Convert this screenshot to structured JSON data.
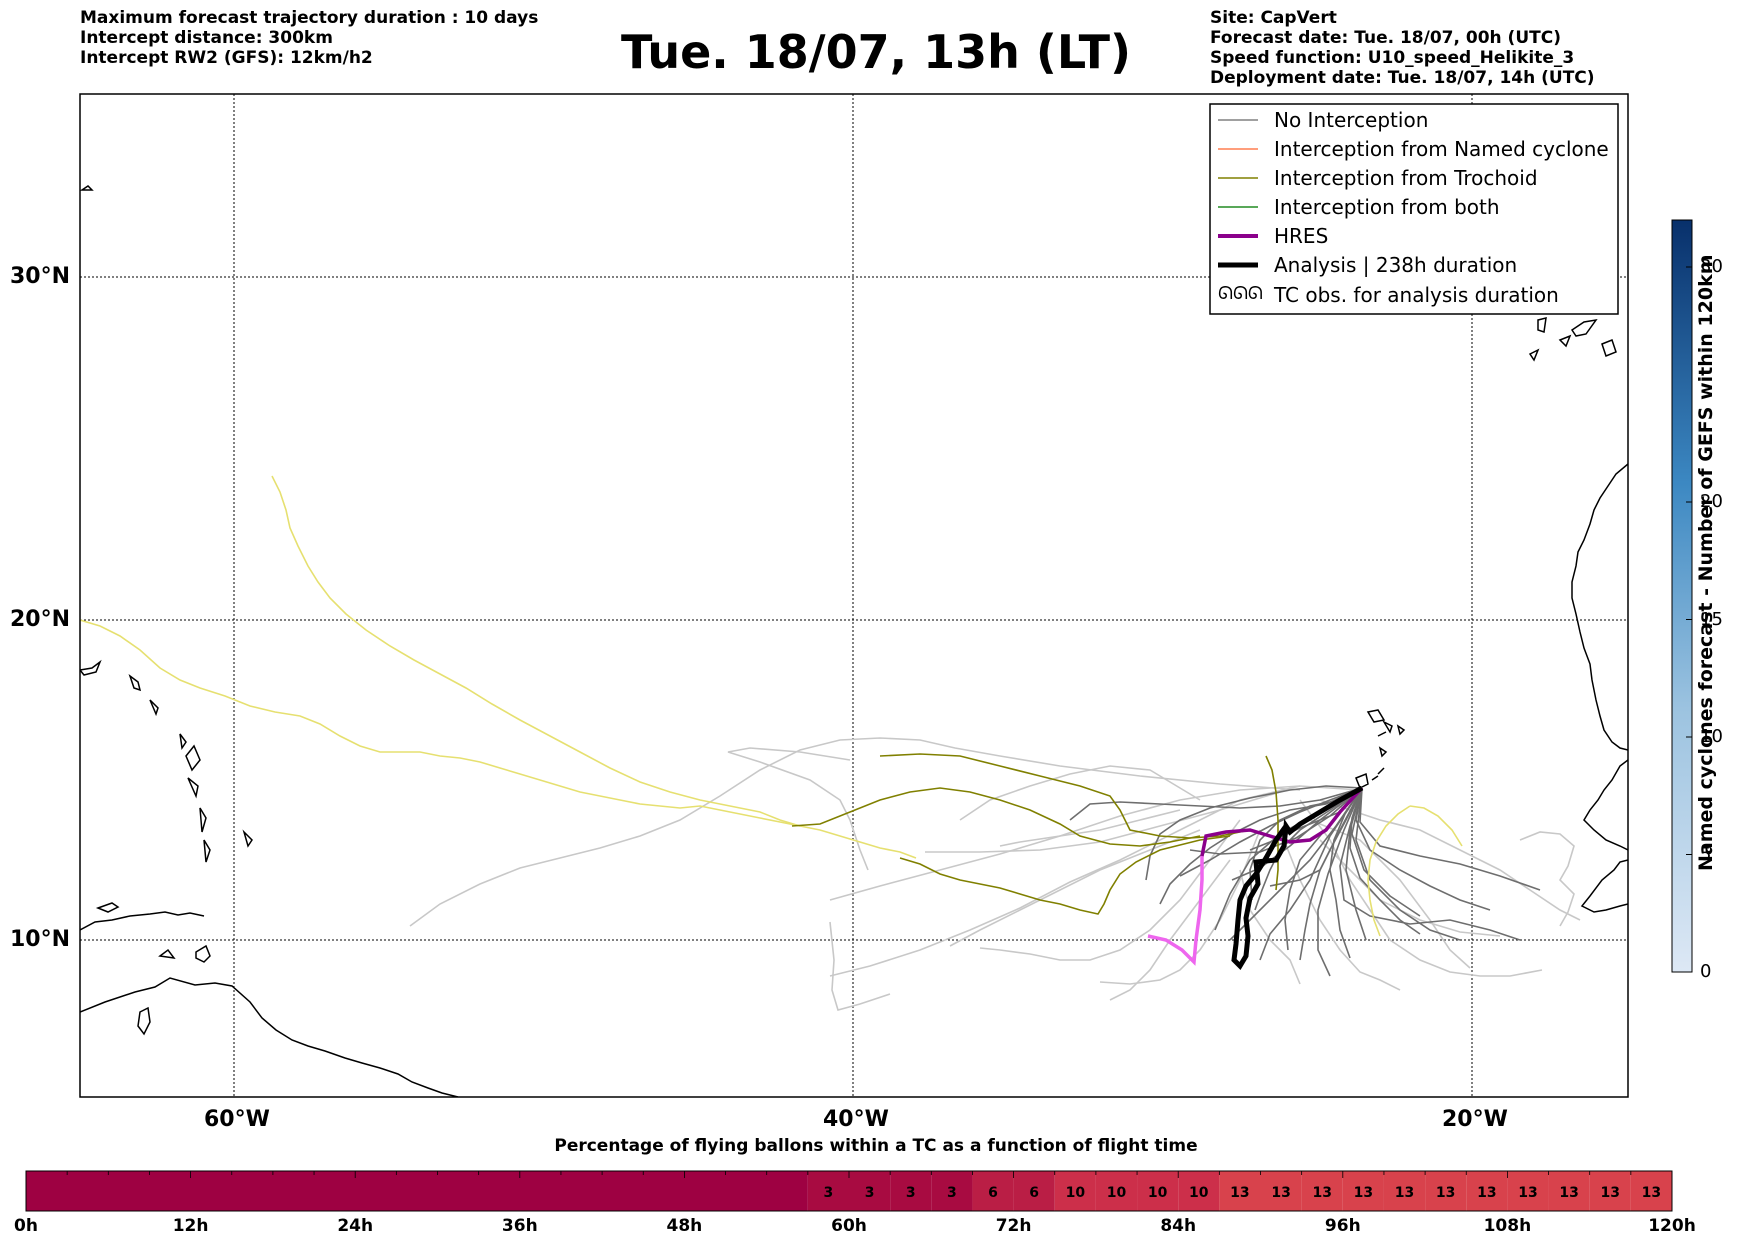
{
  "header": {
    "left_lines": [
      "Maximum forecast trajectory duration : 10 days",
      "Intercept distance: 300km",
      "Intercept RW2 (GFS):  12km/h2"
    ],
    "title": "Tue. 18/07, 13h (LT)",
    "right_lines": [
      "Site: CapVert",
      "Forecast date: Tue. 18/07, 00h (UTC)",
      "Speed function: U10_speed_Helikite_3",
      "Deployment date: Tue. 18/07, 14h (UTC)"
    ]
  },
  "map": {
    "lon_labels": [
      "60°W",
      "40°W",
      "20°W"
    ],
    "lat_labels": [
      "30°N",
      "20°N",
      "10°N"
    ],
    "gridline_lons": [
      -60,
      -40,
      -20
    ],
    "gridline_lats": [
      30,
      20,
      10
    ],
    "lon_range": [
      -65,
      -15
    ],
    "lat_range": [
      5.4,
      34.6
    ]
  },
  "legend": {
    "position": "top-right",
    "items": [
      {
        "label": "No Interception",
        "color": "#808080",
        "style": "thin"
      },
      {
        "label": "Interception from Named cyclone",
        "color": "#ff7f50",
        "style": "thin"
      },
      {
        "label": "Interception from Trochoid",
        "color": "#808000",
        "style": "thin"
      },
      {
        "label": "Interception from both",
        "color": "#228b22",
        "style": "thin"
      },
      {
        "label": "HRES",
        "color": "#8b008b",
        "style": "thick"
      },
      {
        "label": "Analysis | 238h duration",
        "color": "#000000",
        "style": "thick"
      },
      {
        "label": "TC obs. for analysis duration",
        "icon": "tc-symbol-icon",
        "symbol": "ᘏᘏᘏ"
      }
    ]
  },
  "colorbar": {
    "title": "Named cyclones forecast - Number of GEFS within 120km",
    "ticks": [
      "0",
      "5",
      "10",
      "15",
      "20",
      "30"
    ],
    "tick_values": [
      0,
      5,
      10,
      15,
      20,
      30
    ],
    "range": [
      0,
      32
    ]
  },
  "strip": {
    "title": "Percentage of flying ballons within a TC as a function of flight time",
    "time_labels": [
      "0h",
      "12h",
      "24h",
      "36h",
      "48h",
      "60h",
      "72h",
      "84h",
      "96h",
      "108h",
      "120h"
    ],
    "cells": [
      {
        "from_h": 0,
        "to_h": 57,
        "value": "",
        "color": "#9e0142"
      },
      {
        "from_h": 57,
        "to_h": 60,
        "value": "3",
        "color": "#a80b41"
      },
      {
        "from_h": 60,
        "to_h": 63,
        "value": "3",
        "color": "#a80b41"
      },
      {
        "from_h": 63,
        "to_h": 66,
        "value": "3",
        "color": "#a80b41"
      },
      {
        "from_h": 66,
        "to_h": 69,
        "value": "3",
        "color": "#a80b41"
      },
      {
        "from_h": 69,
        "to_h": 72,
        "value": "6",
        "color": "#ba1e45"
      },
      {
        "from_h": 72,
        "to_h": 75,
        "value": "6",
        "color": "#ba1e45"
      },
      {
        "from_h": 75,
        "to_h": 78,
        "value": "10",
        "color": "#cc2f4a"
      },
      {
        "from_h": 78,
        "to_h": 81,
        "value": "10",
        "color": "#cc2f4a"
      },
      {
        "from_h": 81,
        "to_h": 84,
        "value": "10",
        "color": "#cc2f4a"
      },
      {
        "from_h": 84,
        "to_h": 87,
        "value": "10",
        "color": "#cc2f4a"
      },
      {
        "from_h": 87,
        "to_h": 90,
        "value": "13",
        "color": "#d8424c"
      },
      {
        "from_h": 90,
        "to_h": 93,
        "value": "13",
        "color": "#d8424c"
      },
      {
        "from_h": 93,
        "to_h": 96,
        "value": "13",
        "color": "#d8424c"
      },
      {
        "from_h": 96,
        "to_h": 99,
        "value": "13",
        "color": "#d8424c"
      },
      {
        "from_h": 99,
        "to_h": 102,
        "value": "13",
        "color": "#d8424c"
      },
      {
        "from_h": 102,
        "to_h": 105,
        "value": "13",
        "color": "#d8424c"
      },
      {
        "from_h": 105,
        "to_h": 108,
        "value": "13",
        "color": "#d8424c"
      },
      {
        "from_h": 108,
        "to_h": 111,
        "value": "13",
        "color": "#d8424c"
      },
      {
        "from_h": 111,
        "to_h": 114,
        "value": "13",
        "color": "#d8424c"
      },
      {
        "from_h": 114,
        "to_h": 117,
        "value": "13",
        "color": "#d8424c"
      },
      {
        "from_h": 117,
        "to_h": 120,
        "value": "13",
        "color": "#d8424c"
      }
    ]
  },
  "colors": {
    "no_interception": "#777777",
    "no_interception_light": "#c8c8c8",
    "trochoid": "#808000",
    "trochoid_light": "#e6e070",
    "hres": "#8b008b",
    "hres_light": "#ee66ee",
    "analysis": "#000000",
    "coastline": "#000000"
  }
}
